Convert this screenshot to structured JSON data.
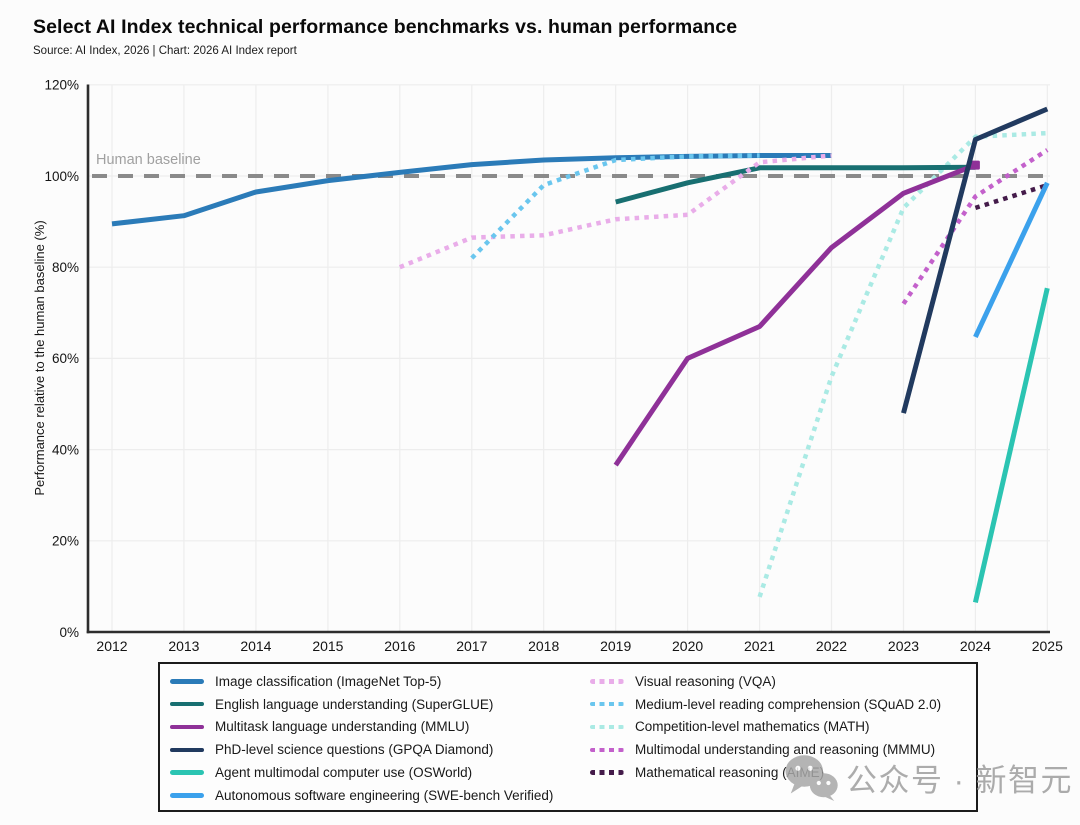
{
  "header": {
    "title": "Select AI Index technical performance benchmarks vs. human performance",
    "source": "Source: AI Index, 2026 | Chart: 2026 AI Index report"
  },
  "watermark": {
    "text": "公众号 · 新智元",
    "icon": "wechat-icon"
  },
  "chart_data": {
    "type": "line",
    "title": "Select AI Index technical performance benchmarks vs. human performance",
    "subtitle": "Source: AI Index, 2026 | Chart: 2026 AI Index report",
    "xlabel": "",
    "ylabel": "Performance relative to the human baseline (%)",
    "ylim": [
      0,
      120
    ],
    "yticks": [
      0,
      20,
      40,
      60,
      80,
      100,
      120
    ],
    "ytick_labels": [
      "0%",
      "20%",
      "40%",
      "60%",
      "80%",
      "100%",
      "120%"
    ],
    "xticks": [
      2012,
      2013,
      2014,
      2015,
      2016,
      2017,
      2018,
      2019,
      2020,
      2021,
      2022,
      2023,
      2024,
      2025
    ],
    "grid": true,
    "legend_position": "bottom",
    "baseline": {
      "value": 100,
      "label": "Human baseline",
      "color": "#8a8a8a"
    },
    "series": [
      {
        "name": "Image classification (ImageNet Top-5)",
        "color": "#2b7bb8",
        "style": "solid",
        "points": [
          [
            2012,
            89.5
          ],
          [
            2013,
            91.3
          ],
          [
            2014,
            96.5
          ],
          [
            2015,
            99.0
          ],
          [
            2016,
            100.8
          ],
          [
            2017,
            102.5
          ],
          [
            2018,
            103.5
          ],
          [
            2019,
            104.0
          ],
          [
            2020,
            104.3
          ],
          [
            2021,
            104.5
          ],
          [
            2022,
            104.5
          ]
        ]
      },
      {
        "name": "English language understanding (SuperGLUE)",
        "color": "#186f71",
        "style": "solid",
        "points": [
          [
            2019,
            94.3
          ],
          [
            2020,
            98.5
          ],
          [
            2021,
            101.8
          ],
          [
            2022,
            101.8
          ],
          [
            2023,
            101.8
          ],
          [
            2024,
            101.9
          ]
        ]
      },
      {
        "name": "Multitask language understanding (MMLU)",
        "color": "#8f3198",
        "style": "solid",
        "end_marker": true,
        "points": [
          [
            2019,
            36.6
          ],
          [
            2020,
            60.0
          ],
          [
            2021,
            67.0
          ],
          [
            2022,
            84.3
          ],
          [
            2023,
            96.2
          ],
          [
            2024,
            102.4
          ]
        ]
      },
      {
        "name": "PhD-level science questions (GPQA Diamond)",
        "color": "#213a5f",
        "style": "solid",
        "points": [
          [
            2023,
            48.0
          ],
          [
            2024,
            108.0
          ],
          [
            2025,
            114.7
          ]
        ]
      },
      {
        "name": "Agent multimodal computer use (OSWorld)",
        "color": "#2bc4b2",
        "style": "solid",
        "points": [
          [
            2024,
            6.5
          ],
          [
            2025,
            75.4
          ]
        ]
      },
      {
        "name": "Autonomous software engineering (SWE-bench Verified)",
        "color": "#3ba1ec",
        "style": "solid",
        "points": [
          [
            2024,
            64.7
          ],
          [
            2025,
            98.5
          ]
        ]
      },
      {
        "name": "Visual reasoning (VQA)",
        "color": "#e9ade9",
        "style": "dotted",
        "points": [
          [
            2016,
            80.0
          ],
          [
            2017,
            86.5
          ],
          [
            2018,
            87.0
          ],
          [
            2019,
            90.5
          ],
          [
            2020,
            91.5
          ],
          [
            2021,
            103.0
          ],
          [
            2022,
            104.5
          ]
        ]
      },
      {
        "name": "Medium-level reading comprehension (SQuAD 2.0)",
        "color": "#6ac6ee",
        "style": "dotted",
        "points": [
          [
            2017,
            82.0
          ],
          [
            2018,
            98.0
          ],
          [
            2019,
            103.5
          ],
          [
            2020,
            104.3
          ],
          [
            2021,
            104.5
          ]
        ]
      },
      {
        "name": "Competition-level mathematics (MATH)",
        "color": "#aaeae4",
        "style": "dotted",
        "points": [
          [
            2021,
            7.7
          ],
          [
            2022,
            56.0
          ],
          [
            2023,
            93.0
          ],
          [
            2024,
            108.6
          ],
          [
            2025,
            109.4
          ]
        ]
      },
      {
        "name": "Multimodal understanding and reasoning (MMMU)",
        "color": "#c361cb",
        "style": "dotted",
        "points": [
          [
            2023,
            72.0
          ],
          [
            2024,
            95.5
          ],
          [
            2025,
            105.7
          ]
        ]
      },
      {
        "name": "Mathematical reasoning (AIME)",
        "color": "#441b4a",
        "style": "dotted",
        "points": [
          [
            2024,
            93.0
          ],
          [
            2025,
            98.0
          ]
        ]
      }
    ]
  }
}
